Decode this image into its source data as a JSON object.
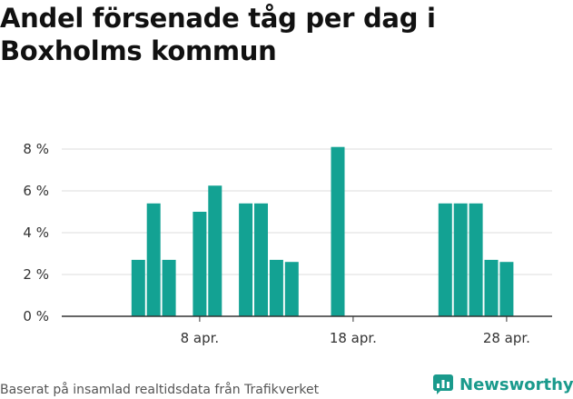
{
  "title": "Andel försenade tåg per dag i Boxholms kommun",
  "footer": "Baserat på insamlad realtidsdata från Trafikverket",
  "brand": "Newsworthy",
  "colors": {
    "bar": "#13a293",
    "grid": "#dddddd",
    "axis": "#333333",
    "brand": "#1a9a8c"
  },
  "chart_data": {
    "type": "bar",
    "categories": [
      "2 apr.",
      "3 apr.",
      "4 apr.",
      "5 apr.",
      "6 apr.",
      "7 apr.",
      "8 apr.",
      "9 apr.",
      "10 apr.",
      "11 apr.",
      "12 apr.",
      "13 apr.",
      "14 apr.",
      "15 apr.",
      "16 apr.",
      "17 apr.",
      "18 apr.",
      "19 apr.",
      "20 apr.",
      "21 apr.",
      "22 apr.",
      "23 apr.",
      "24 apr.",
      "25 apr.",
      "26 apr.",
      "27 apr.",
      "28 apr.",
      "29 apr.",
      "30 apr."
    ],
    "values": [
      0,
      0,
      2.7,
      5.4,
      2.7,
      0,
      5.0,
      6.25,
      0,
      5.4,
      5.4,
      2.7,
      2.6,
      0,
      0,
      8.1,
      0,
      0,
      0,
      0,
      0,
      0,
      5.4,
      5.4,
      5.4,
      2.7,
      2.6,
      0,
      0
    ],
    "xticks": [
      "8 apr.",
      "18 apr.",
      "28 apr."
    ],
    "yticks": [
      "0 %",
      "2 %",
      "4 %",
      "6 %",
      "8 %"
    ],
    "ytick_values": [
      0,
      2,
      4,
      6,
      8
    ],
    "ylim": [
      0,
      8
    ],
    "xlabel": "",
    "ylabel": "",
    "grid": true
  }
}
